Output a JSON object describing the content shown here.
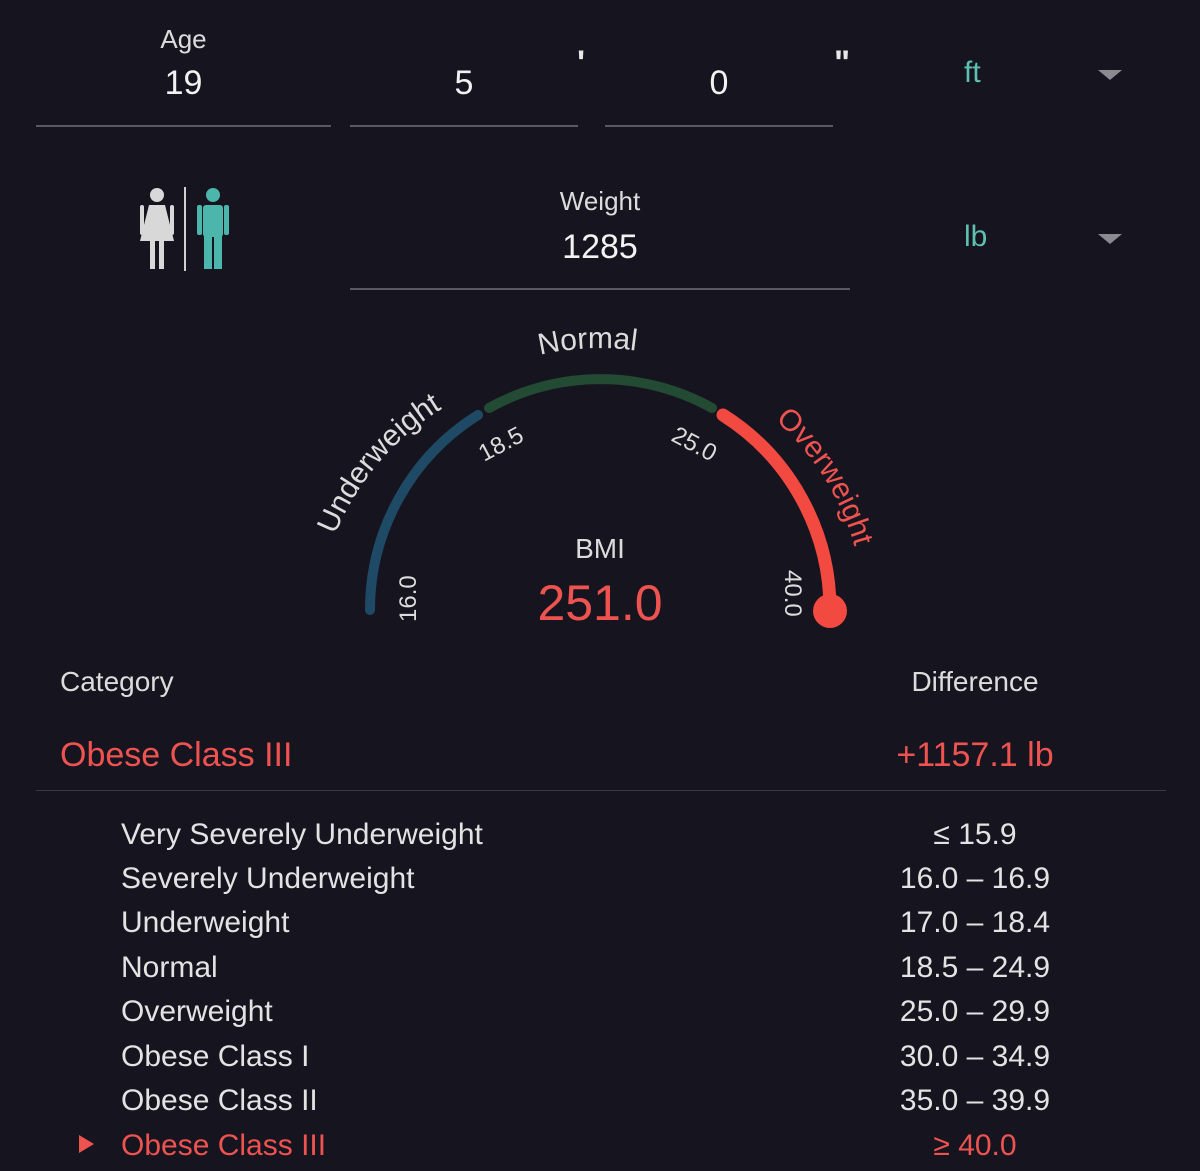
{
  "inputs": {
    "age": {
      "label": "Age",
      "value": "19"
    },
    "height_ft": "5",
    "height_ft_mark": "'",
    "height_in": "0",
    "height_in_mark": "\"",
    "height_unit": "ft",
    "weight": {
      "label": "Weight",
      "value": "1285"
    },
    "weight_unit": "lb"
  },
  "gender": {
    "selected": "male"
  },
  "gauge": {
    "labels": {
      "underweight": "Underweight",
      "normal": "Normal",
      "overweight": "Overweight"
    },
    "ticks": [
      "16.0",
      "18.5",
      "25.0",
      "40.0"
    ],
    "bmi_label": "BMI",
    "bmi_value": "251.0",
    "colors": {
      "underweight": "#1f4a66",
      "normal": "#234a33",
      "overweight": "#f24a41",
      "label_overweight": "#ef5350"
    }
  },
  "result": {
    "category_header": "Category",
    "difference_header": "Difference",
    "category": "Obese Class III",
    "difference": "+1157.1 lb"
  },
  "table": [
    {
      "label": "Very Severely Underweight",
      "range": "≤ 15.9",
      "active": false
    },
    {
      "label": "Severely Underweight",
      "range": "16.0 – 16.9",
      "active": false
    },
    {
      "label": "Underweight",
      "range": "17.0 – 18.4",
      "active": false
    },
    {
      "label": "Normal",
      "range": "18.5 – 24.9",
      "active": false
    },
    {
      "label": "Overweight",
      "range": "25.0 – 29.9",
      "active": false
    },
    {
      "label": "Obese Class I",
      "range": "30.0 – 34.9",
      "active": false
    },
    {
      "label": "Obese Class II",
      "range": "35.0 – 39.9",
      "active": false
    },
    {
      "label": "Obese Class III",
      "range": "≥ 40.0",
      "active": true
    }
  ],
  "colors": {
    "accent": "#ef5350",
    "unit": "#5fbfb0",
    "background": "#16141f"
  }
}
